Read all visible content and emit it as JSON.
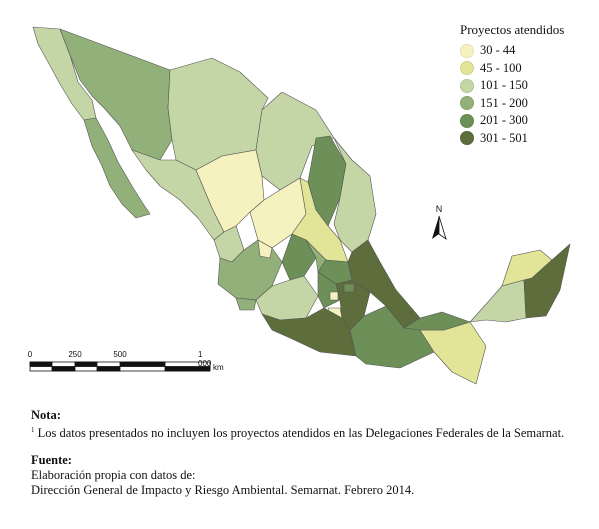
{
  "legend": {
    "title": "Proyectos atendidos",
    "items": [
      {
        "label": "30 - 44",
        "color": "#f6f2c0"
      },
      {
        "label": "45 - 100",
        "color": "#e2e498"
      },
      {
        "label": "101 - 150",
        "color": "#c5d6a6"
      },
      {
        "label": "151 - 200",
        "color": "#92b07a"
      },
      {
        "label": "201 - 300",
        "color": "#6c9058"
      },
      {
        "label": "301 - 501",
        "color": "#5d6e3c"
      }
    ]
  },
  "north_arrow": {
    "letter": "N"
  },
  "scale_bar": {
    "ticks": [
      "0",
      "250",
      "500",
      "1 000"
    ],
    "unit": "km"
  },
  "notes": {
    "nota_heading": "Nota:",
    "nota_marker": "1",
    "nota_text": "Los datos presentados no incluyen los proyectos atendidos en las Delegaciones Federales de la Semarnat.",
    "fuente_heading": "Fuente:",
    "fuente_line1": "Elaboración propia con datos de:",
    "fuente_line2": "Dirección General de Impacto y Riesgo Ambiental. Semarnat. Febrero 2014."
  },
  "map": {
    "region_colors": {
      "baja_california": "#c5d6a6",
      "baja_california_sur": "#92b07a",
      "sonora": "#92b07a",
      "chihuahua": "#c5d6a6",
      "coahuila": "#c5d6a6",
      "nuevo_leon": "#6c9058",
      "tamaulipas": "#c5d6a6",
      "sinaloa": "#c5d6a6",
      "durango": "#f6f2c0",
      "zacatecas": "#f6f2c0",
      "san_luis_potosi": "#e2e498",
      "nayarit": "#c5d6a6",
      "jalisco": "#92b07a",
      "aguascalientes": "#f6f2c0",
      "guanajuato": "#6c9058",
      "queretaro": "#92b07a",
      "hidalgo": "#6c9058",
      "veracruz": "#5d6e3c",
      "michoacan": "#c5d6a6",
      "colima": "#92b07a",
      "mexico": "#6c9058",
      "cdmx": "#f6f2c0",
      "morelos": "#f6f2c0",
      "puebla": "#5d6e3c",
      "tlaxcala": "#6c9058",
      "guerrero": "#5d6e3c",
      "oaxaca": "#6c9058",
      "chiapas": "#e2e498",
      "tabasco": "#6c9058",
      "campeche": "#c5d6a6",
      "yucatan": "#e2e498",
      "quintana_roo": "#5d6e3c"
    }
  }
}
